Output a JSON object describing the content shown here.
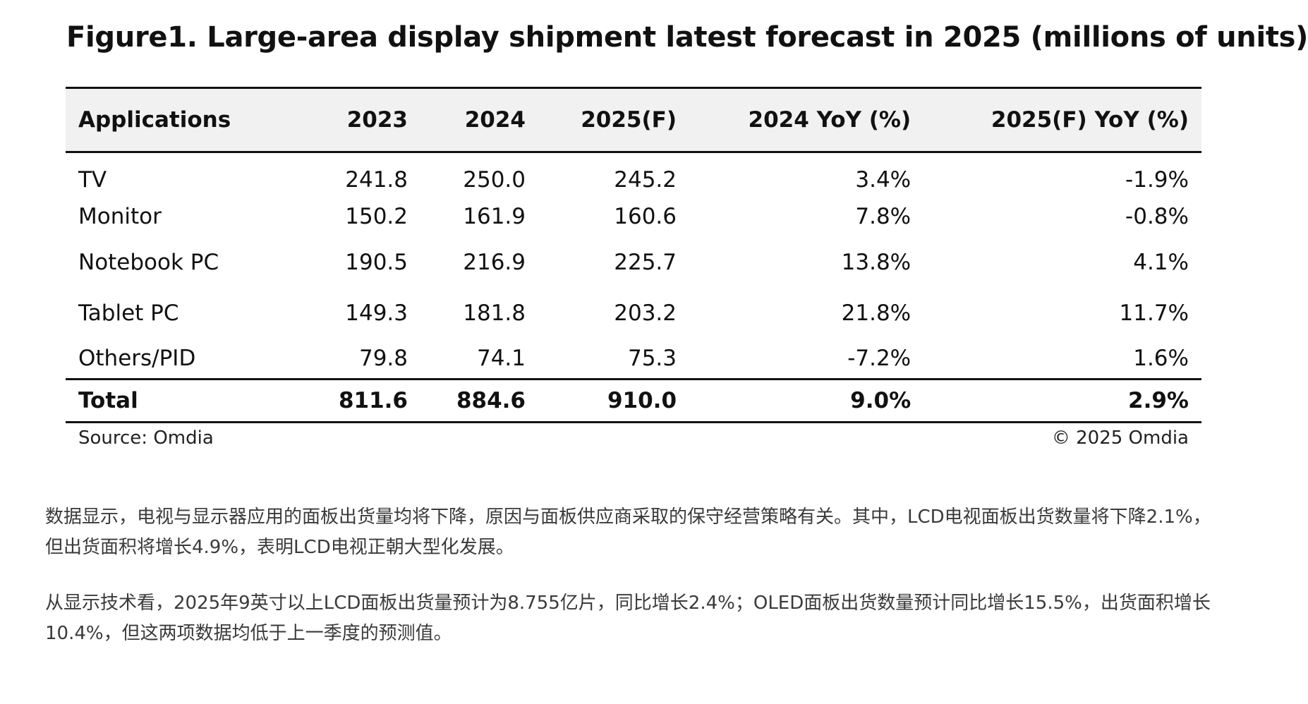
{
  "figure": {
    "title": "Figure1. Large-area display shipment latest forecast in 2025 (millions of units)"
  },
  "table": {
    "headers": [
      "Applications",
      "2023",
      "2024",
      "2025(F)",
      "2024 YoY (%)",
      "2025(F) YoY (%)"
    ],
    "rows": [
      [
        "TV",
        "241.8",
        "250.0",
        "245.2",
        "3.4%",
        "-1.9%"
      ],
      [
        "Monitor",
        "150.2",
        "161.9",
        "160.6",
        "7.8%",
        "-0.8%"
      ],
      [
        "Notebook PC",
        "190.5",
        "216.9",
        "225.7",
        "13.8%",
        "4.1%"
      ],
      [
        "Tablet PC",
        "149.3",
        "181.8",
        "203.2",
        "21.8%",
        "11.7%"
      ],
      [
        "Others/PID",
        "79.8",
        "74.1",
        "75.3",
        "-7.2%",
        "1.6%"
      ]
    ],
    "total": [
      "Total",
      "811.6",
      "884.6",
      "910.0",
      "9.0%",
      "2.9%"
    ]
  },
  "source": {
    "left": "Source: Omdia",
    "right": "© 2025 Omdia"
  },
  "article": {
    "paragraph_1": "数据显示，电视与显示器应用的面板出货量均将下降，原因与面板供应商采取的保守经营策略有关。其中，LCD电视面板出货数量将下降2.1%，但出货面积将增长4.9%，表明LCD电视正朝大型化发展。",
    "paragraph_2": "从显示技术看，2025年9英寸以上LCD面板出货量预计为8.755亿片，同比增长2.4%；OLED面板出货数量预计同比增长15.5%，出货面积增长10.4%，但这两项数据均低于上一季度的预测值。"
  }
}
